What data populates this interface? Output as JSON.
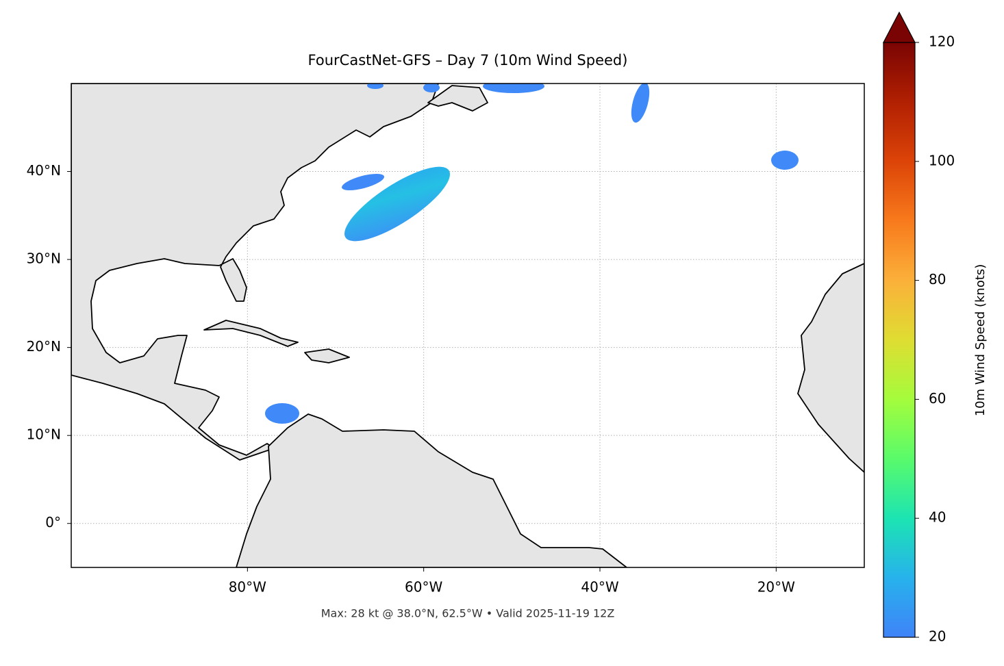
{
  "chart_data": {
    "type": "map",
    "title": "FourCastNet-GFS – Day 7 (10m Wind Speed)",
    "subtitle": "Max: 28 kt @ 38.0°N, 62.5°W • Valid 2025-11-19 12Z",
    "xlim": [
      -100,
      -10
    ],
    "ylim": [
      -5,
      50
    ],
    "xticks": [
      {
        "value": -80,
        "label": "80°W"
      },
      {
        "value": -60,
        "label": "60°W"
      },
      {
        "value": -40,
        "label": "40°W"
      },
      {
        "value": -20,
        "label": "20°W"
      }
    ],
    "yticks": [
      {
        "value": 0,
        "label": "0°"
      },
      {
        "value": 10,
        "label": "10°N"
      },
      {
        "value": 20,
        "label": "20°N"
      },
      {
        "value": 30,
        "label": "30°N"
      },
      {
        "value": 40,
        "label": "40°N"
      }
    ],
    "grid": true,
    "colorbar": {
      "label": "10m Wind Speed (knots)",
      "lim": [
        20,
        120
      ],
      "ticks": [
        20,
        40,
        60,
        80,
        100,
        120
      ]
    }
  }
}
